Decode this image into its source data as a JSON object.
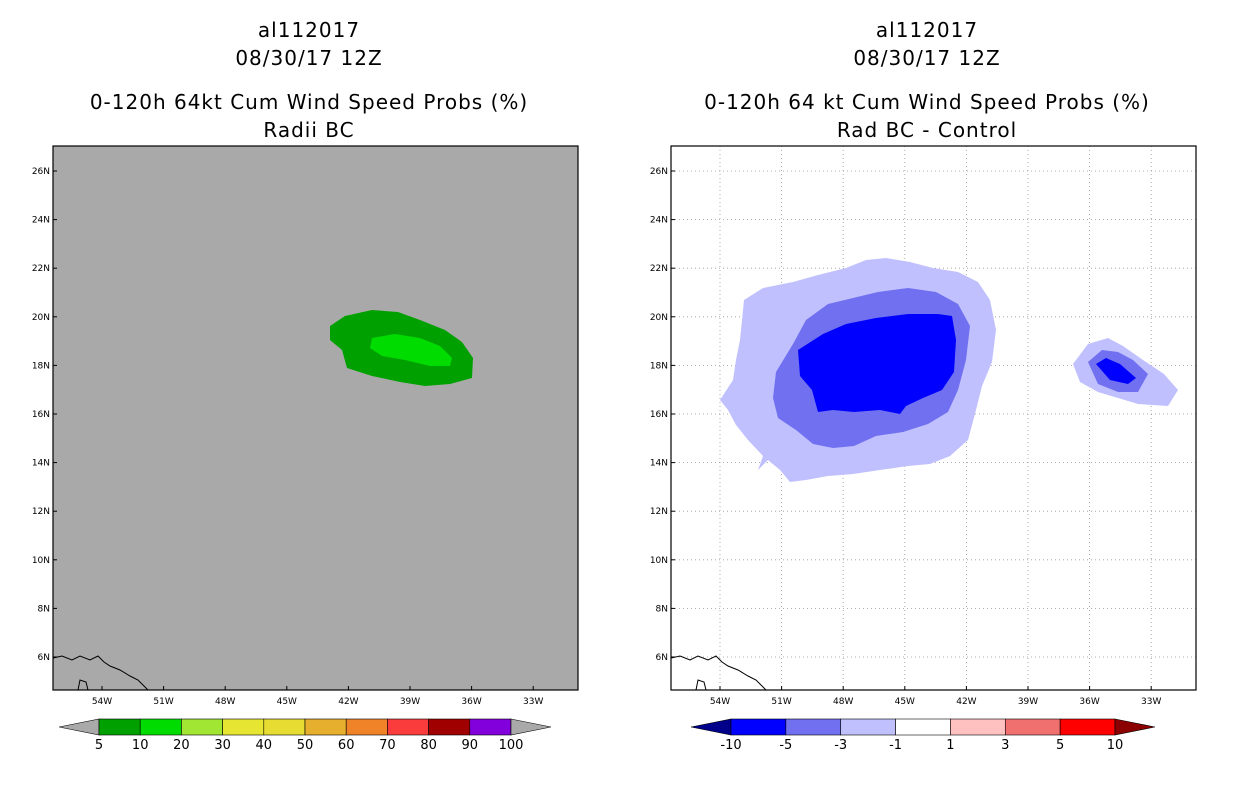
{
  "left_panel": {
    "storm_id": "al112017",
    "date": "08/30/17 12Z",
    "title": "0-120h 64kt Cum Wind Speed Probs (%)",
    "subtitle": "Radii BC",
    "background_color": "#a9a9a9",
    "lat_labels": [
      "26N",
      "24N",
      "22N",
      "20N",
      "18N",
      "16N",
      "14N",
      "12N",
      "10N",
      "8N",
      "6N"
    ],
    "lon_labels": [
      "54W",
      "51W",
      "48W",
      "45W",
      "42W",
      "39W",
      "36W",
      "33W"
    ],
    "colorbar": {
      "colors": [
        "#00a000",
        "#00dc00",
        "#a0e632",
        "#e6e632",
        "#e6dc32",
        "#e6af2d",
        "#f08228",
        "#fa3c3c",
        "#a00000",
        "#8200dc"
      ],
      "labels": [
        "5",
        "10",
        "20",
        "30",
        "40",
        "50",
        "60",
        "70",
        "80",
        "90",
        "100"
      ]
    }
  },
  "right_panel": {
    "storm_id": "al112017",
    "date": "08/30/17 12Z",
    "title": "0-120h 64 kt Cum Wind Speed Probs (%)",
    "subtitle": "Rad BC - Control",
    "background_color": "#ffffff",
    "lat_labels": [
      "26N",
      "24N",
      "22N",
      "20N",
      "18N",
      "16N",
      "14N",
      "12N",
      "10N",
      "8N",
      "6N"
    ],
    "lon_labels": [
      "54W",
      "51W",
      "48W",
      "45W",
      "42W",
      "39W",
      "36W",
      "33W"
    ],
    "colorbar": {
      "colors": [
        "#0000ff",
        "#7070f0",
        "#c0c0ff",
        "#ffffff",
        "#ffc0c0",
        "#f07070",
        "#ff0000"
      ],
      "low_arrow_color": "#00008b",
      "high_arrow_color": "#8b0000",
      "labels": [
        "-10",
        "-5",
        "-3",
        "-1",
        "1",
        "3",
        "5",
        "10"
      ]
    }
  },
  "contour_colors": {
    "prob_5_10": "#00a000",
    "prob_10_20": "#00dc00",
    "diff_lt_m10": "#0000ff",
    "diff_m10_m5": "#7070f0",
    "diff_m5_m3": "#c0c0ff"
  }
}
